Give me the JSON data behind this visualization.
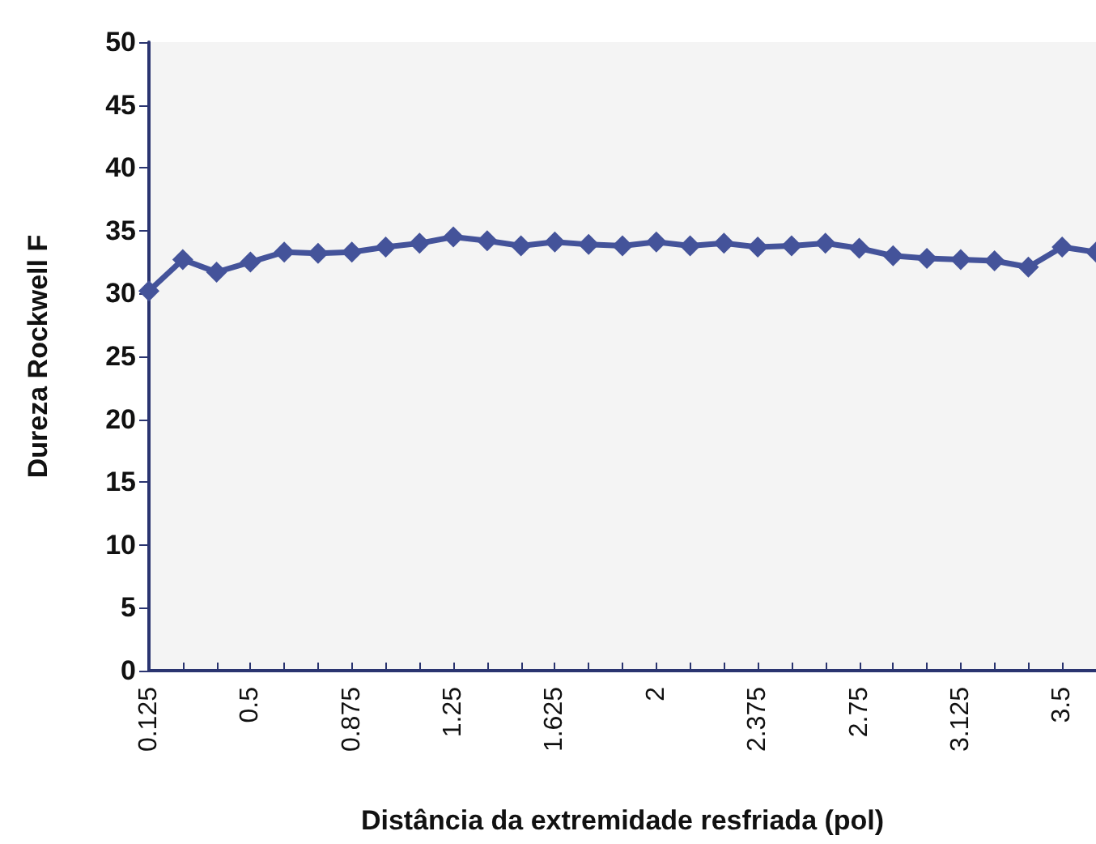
{
  "chart_data": {
    "type": "line",
    "xlabel": "Distância da extremidade resfriada (pol)",
    "ylabel": "Dureza Rockwell F",
    "categories": [
      "0.125",
      null,
      null,
      "0.5",
      null,
      null,
      "0.875",
      null,
      null,
      "1.25",
      null,
      null,
      "1.625",
      null,
      null,
      "2",
      null,
      null,
      "2.375",
      null,
      null,
      "2.75",
      null,
      null,
      "3.125",
      null,
      null,
      "3.5",
      null
    ],
    "series": [
      {
        "color": "#44539a",
        "values": [
          30.2,
          32.7,
          31.7,
          32.5,
          33.3,
          33.2,
          33.3,
          33.7,
          34.0,
          34.5,
          34.2,
          33.8,
          34.1,
          33.9,
          33.8,
          34.1,
          33.8,
          34.0,
          33.7,
          33.8,
          34.0,
          33.6,
          33.0,
          32.8,
          32.7,
          32.6,
          32.1,
          33.7,
          33.3
        ]
      }
    ],
    "ylim": [
      0,
      50
    ],
    "yticks": [
      0,
      5,
      10,
      15,
      20,
      25,
      30,
      35,
      40,
      45,
      50
    ],
    "grid": false,
    "marker": "diamond",
    "line_style": "solid"
  }
}
